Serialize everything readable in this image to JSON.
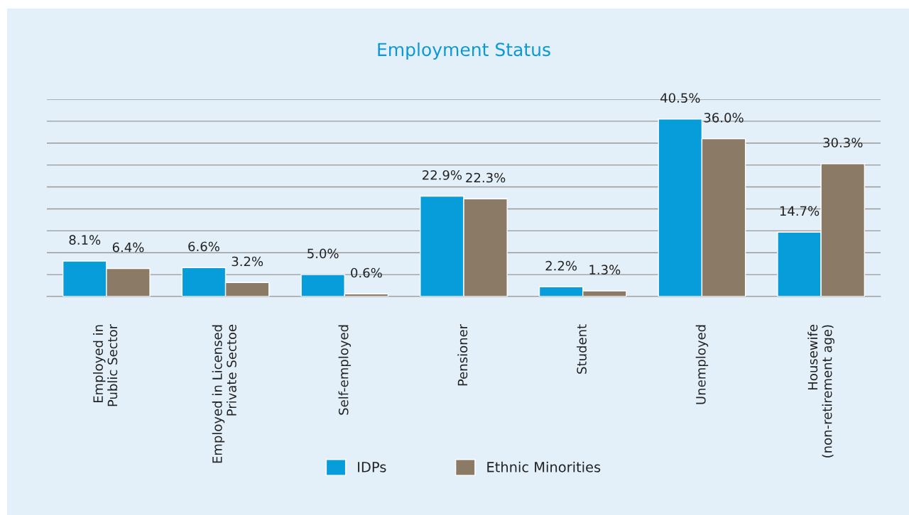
{
  "chart_data": {
    "type": "bar",
    "title": "Employment Status",
    "categories": [
      "Employed in\nPublic Sector",
      "Employed in Licensed\nPrivate Sectoe",
      "Self-employed",
      "Pensioner",
      "Student",
      "Unemployed",
      "Housewife\n(non-retirement age)"
    ],
    "series": [
      {
        "name": "IDPs",
        "color": "#079ddb",
        "values": [
          8.1,
          6.6,
          5.0,
          22.9,
          2.2,
          40.5,
          14.7
        ],
        "value_labels": [
          "8.1%",
          "6.6%",
          "5.0%",
          "22.9%",
          "2.2%",
          "40.5%",
          "14.7%"
        ]
      },
      {
        "name": "Ethnic Minorities",
        "color": "#8a7a66",
        "values": [
          6.4,
          3.2,
          0.6,
          22.3,
          1.3,
          36.0,
          30.3
        ],
        "value_labels": [
          "6.4%",
          "3.2%",
          "0.6%",
          "22.3%",
          "1.3%",
          "36.0%",
          "30.3%"
        ]
      }
    ],
    "ylim": [
      0,
      45
    ],
    "yticks": [
      {
        "value": 0,
        "label": null
      },
      {
        "value": 5,
        "label": null
      },
      {
        "value": 10,
        "label": null
      },
      {
        "value": 15,
        "label": null
      },
      {
        "value": 20,
        "label": null
      },
      {
        "value": 25,
        "label": null
      },
      {
        "value": 30,
        "label": null
      },
      {
        "value": 35,
        "label": null
      },
      {
        "value": 40,
        "label": null
      },
      {
        "value": 45,
        "label": null
      }
    ],
    "tick_labels": "x",
    "grid": "y",
    "legend": "bottom"
  }
}
